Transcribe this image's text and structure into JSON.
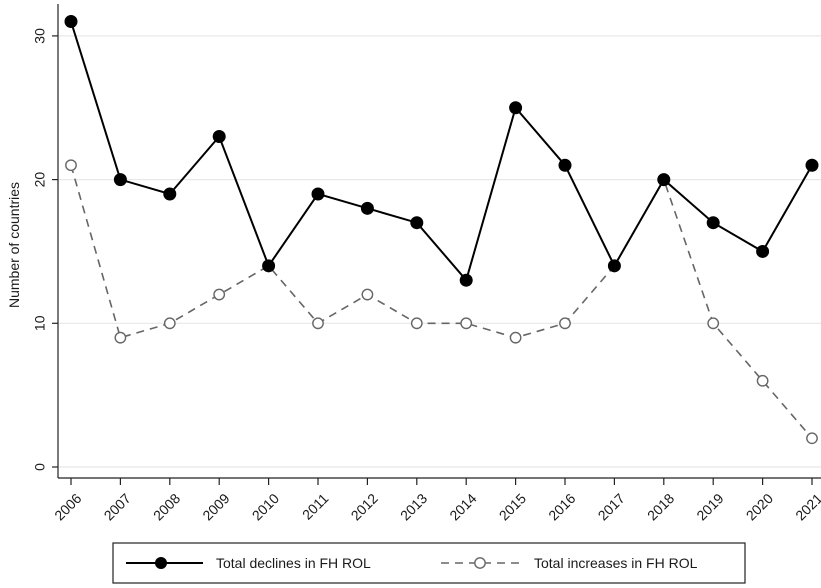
{
  "chart_data": {
    "type": "line",
    "ylabel": "Number of countries",
    "xlabel": "",
    "title": "",
    "ylim": [
      0,
      31
    ],
    "yticks": [
      0,
      10,
      20,
      30
    ],
    "x": [
      "2006",
      "2007",
      "2008",
      "2009",
      "2010",
      "2011",
      "2012",
      "2013",
      "2014",
      "2015",
      "2016",
      "2017",
      "2018",
      "2019",
      "2020",
      "2021"
    ],
    "grid": true,
    "legend_position": "bottom",
    "series": [
      {
        "name": "Total declines in FH ROL",
        "values": [
          31,
          20,
          19,
          23,
          14,
          19,
          18,
          17,
          13,
          25,
          21,
          14,
          20,
          17,
          15,
          21
        ],
        "style": "solid",
        "marker": "filled-circle",
        "color": "#000000"
      },
      {
        "name": "Total increases in FH ROL",
        "values": [
          21,
          9,
          10,
          12,
          14,
          10,
          12,
          10,
          10,
          9,
          10,
          14,
          20,
          10,
          6,
          2
        ],
        "style": "dashed",
        "marker": "hollow-circle",
        "color": "#666666"
      }
    ]
  }
}
